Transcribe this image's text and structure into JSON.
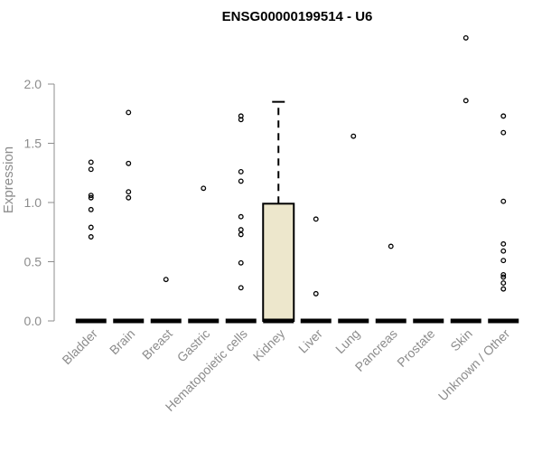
{
  "chart_data": {
    "type": "box",
    "title": "ENSG00000199514 - U6",
    "xlabel": "",
    "ylabel": "Expression",
    "ylim": [
      0,
      2.4
    ],
    "yticks": [
      "0.0",
      "0.5",
      "1.0",
      "1.5",
      "2.0"
    ],
    "grid": false,
    "categories": [
      "Bladder",
      "Brain",
      "Breast",
      "Gastric",
      "Hematopoietic cells",
      "Kidney",
      "Liver",
      "Lung",
      "Pancreas",
      "Prostate",
      "Skin",
      "Unknown / Other"
    ],
    "boxes": [
      {
        "q1": 0,
        "median": 0,
        "q3": 0,
        "whisker_low": 0,
        "whisker_high": 0,
        "outliers": [
          0.71,
          0.79,
          0.94,
          1.04,
          1.06,
          1.28,
          1.34
        ]
      },
      {
        "q1": 0,
        "median": 0,
        "q3": 0,
        "whisker_low": 0,
        "whisker_high": 0,
        "outliers": [
          1.04,
          1.09,
          1.33,
          1.76
        ]
      },
      {
        "q1": 0,
        "median": 0,
        "q3": 0,
        "whisker_low": 0,
        "whisker_high": 0,
        "outliers": [
          0.35
        ]
      },
      {
        "q1": 0,
        "median": 0,
        "q3": 0,
        "whisker_low": 0,
        "whisker_high": 0,
        "outliers": [
          1.12
        ]
      },
      {
        "q1": 0,
        "median": 0,
        "q3": 0,
        "whisker_low": 0,
        "whisker_high": 0,
        "outliers": [
          0.28,
          0.49,
          0.73,
          0.77,
          0.88,
          1.18,
          1.26,
          1.7,
          1.73
        ]
      },
      {
        "q1": 0,
        "median": 0,
        "q3": 0.99,
        "whisker_low": 0,
        "whisker_high": 1.85,
        "outliers": []
      },
      {
        "q1": 0,
        "median": 0,
        "q3": 0,
        "whisker_low": 0,
        "whisker_high": 0,
        "outliers": [
          0.23,
          0.86
        ]
      },
      {
        "q1": 0,
        "median": 0,
        "q3": 0,
        "whisker_low": 0,
        "whisker_high": 0,
        "outliers": [
          1.56
        ]
      },
      {
        "q1": 0,
        "median": 0,
        "q3": 0,
        "whisker_low": 0,
        "whisker_high": 0,
        "outliers": [
          0.63
        ]
      },
      {
        "q1": 0,
        "median": 0,
        "q3": 0,
        "whisker_low": 0,
        "whisker_high": 0,
        "outliers": []
      },
      {
        "q1": 0,
        "median": 0,
        "q3": 0,
        "whisker_low": 0,
        "whisker_high": 0,
        "outliers": [
          1.86,
          2.39
        ]
      },
      {
        "q1": 0,
        "median": 0,
        "q3": 0,
        "whisker_low": 0,
        "whisker_high": 0,
        "outliers": [
          0.27,
          0.32,
          0.37,
          0.39,
          0.51,
          0.59,
          0.65,
          1.01,
          1.59,
          1.73
        ]
      }
    ],
    "box_fill": "#ede7cc",
    "box_stroke": "#000000",
    "axis_color": "#8c8c8c"
  }
}
